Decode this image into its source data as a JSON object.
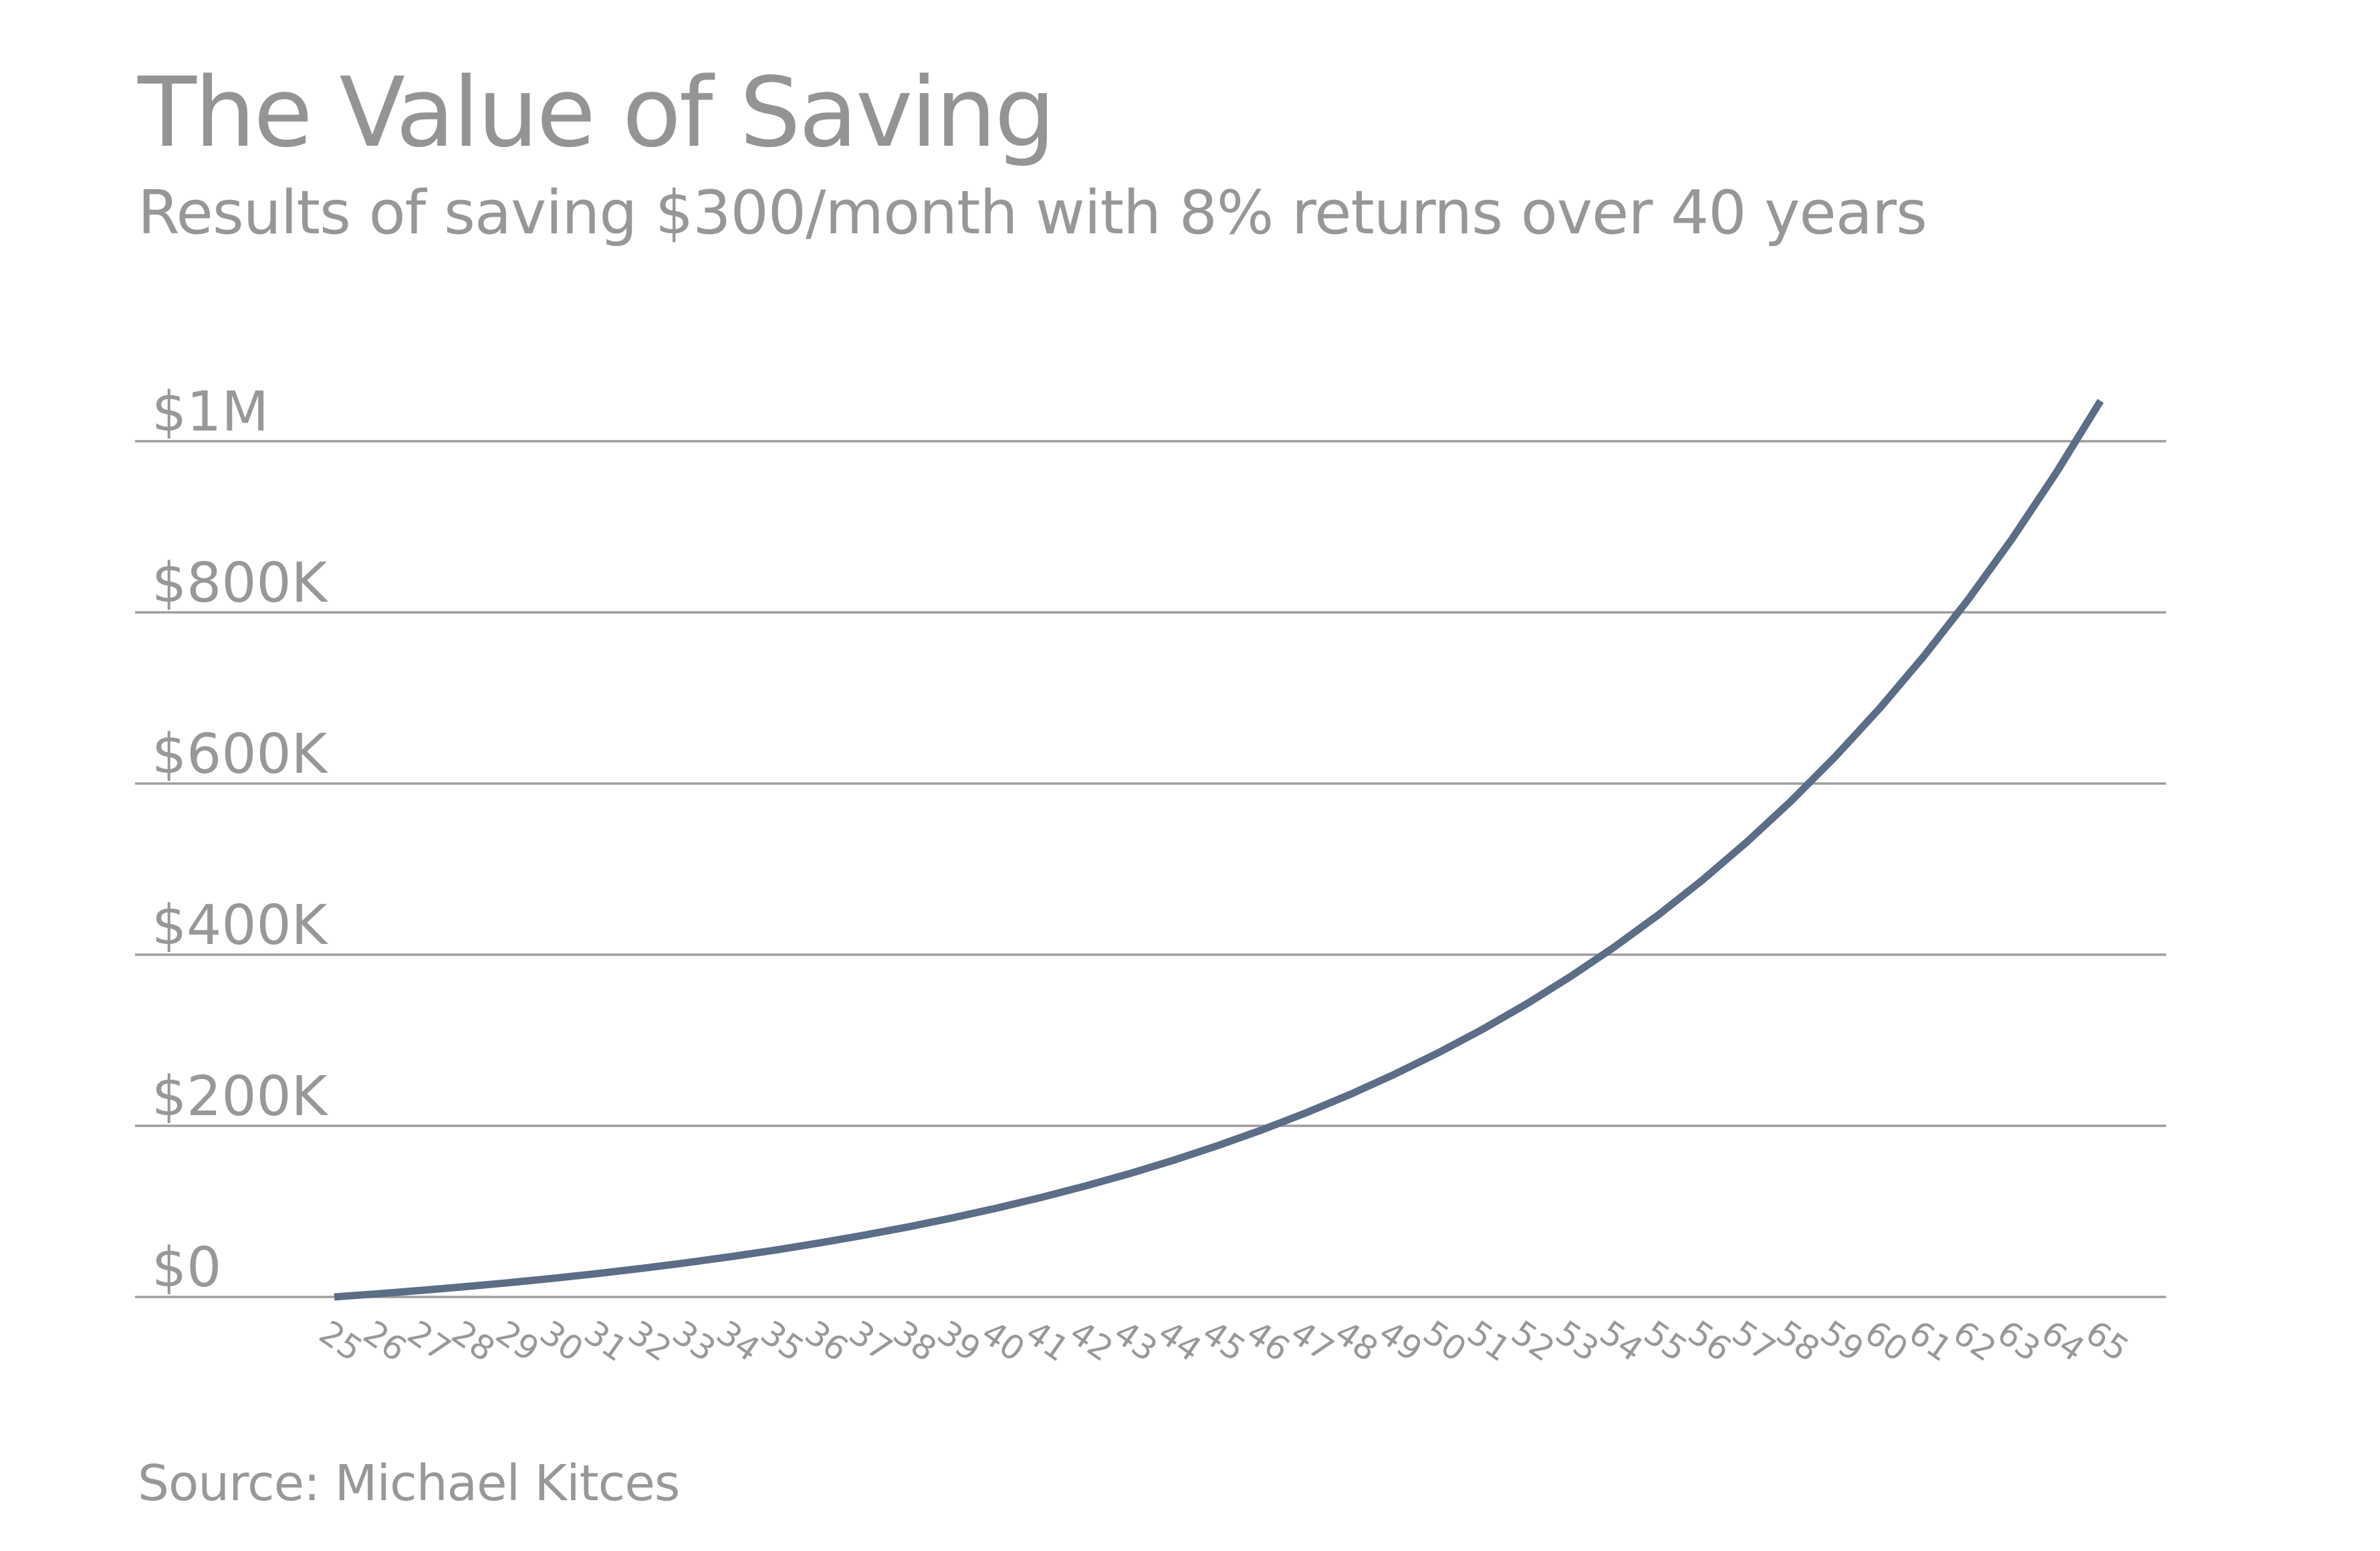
{
  "chart_data": {
    "type": "line",
    "title": "The Value of Saving",
    "subtitle": "Results of saving $300/month with 8% returns over 40 years",
    "source": "Source: Michael Kitces",
    "xlabel": "",
    "ylabel": "",
    "x": [
      25,
      26,
      27,
      28,
      29,
      30,
      31,
      32,
      33,
      34,
      35,
      36,
      37,
      38,
      39,
      40,
      41,
      42,
      43,
      44,
      45,
      46,
      47,
      48,
      49,
      50,
      51,
      52,
      53,
      54,
      55,
      56,
      57,
      58,
      59,
      60,
      61,
      62,
      63,
      64,
      65
    ],
    "values": [
      0,
      3735,
      7780,
      12161,
      16905,
      22043,
      27607,
      33634,
      40160,
      47228,
      54882,
      63172,
      72150,
      81873,
      92402,
      103806,
      116156,
      129531,
      144016,
      159703,
      176692,
      195091,
      215017,
      236596,
      259967,
      285277,
      312687,
      342373,
      374522,
      409340,
      447048,
      487885,
      532111,
      580008,
      631880,
      688057,
      748896,
      814785,
      886141,
      963420,
      1047111
    ],
    "ylim": [
      0,
      1000000
    ],
    "yticks": [
      {
        "value": 0,
        "label": "$0"
      },
      {
        "value": 200000,
        "label": "$200K"
      },
      {
        "value": 400000,
        "label": "$400K"
      },
      {
        "value": 600000,
        "label": "$600K"
      },
      {
        "value": 800000,
        "label": "$800K"
      },
      {
        "value": 1000000,
        "label": "$1M"
      }
    ],
    "grid": "horizontal",
    "legend": "none",
    "xtick_rotation_deg": 35,
    "colors": {
      "line": "#5b6d87",
      "grid": "#9e9e9e",
      "text": "#989898"
    }
  }
}
